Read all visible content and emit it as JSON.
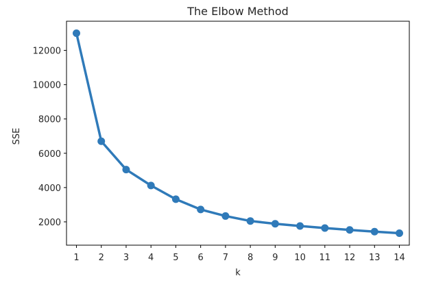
{
  "chart_data": {
    "type": "line",
    "title": "The Elbow Method",
    "xlabel": "k",
    "ylabel": "SSE",
    "x": [
      1,
      2,
      3,
      4,
      5,
      6,
      7,
      8,
      9,
      10,
      11,
      12,
      13,
      14
    ],
    "series": [
      {
        "values": [
          13000,
          6700,
          5050,
          4120,
          3320,
          2720,
          2340,
          2050,
          1890,
          1760,
          1640,
          1530,
          1430,
          1340
        ]
      }
    ],
    "yticks": [
      2000,
      4000,
      6000,
      8000,
      10000,
      12000
    ],
    "ylim": [
      640,
      13700
    ],
    "xlim": [
      0.6,
      14.4
    ],
    "grid": false,
    "line_color": "#2f7ab9",
    "marker": "circle"
  }
}
